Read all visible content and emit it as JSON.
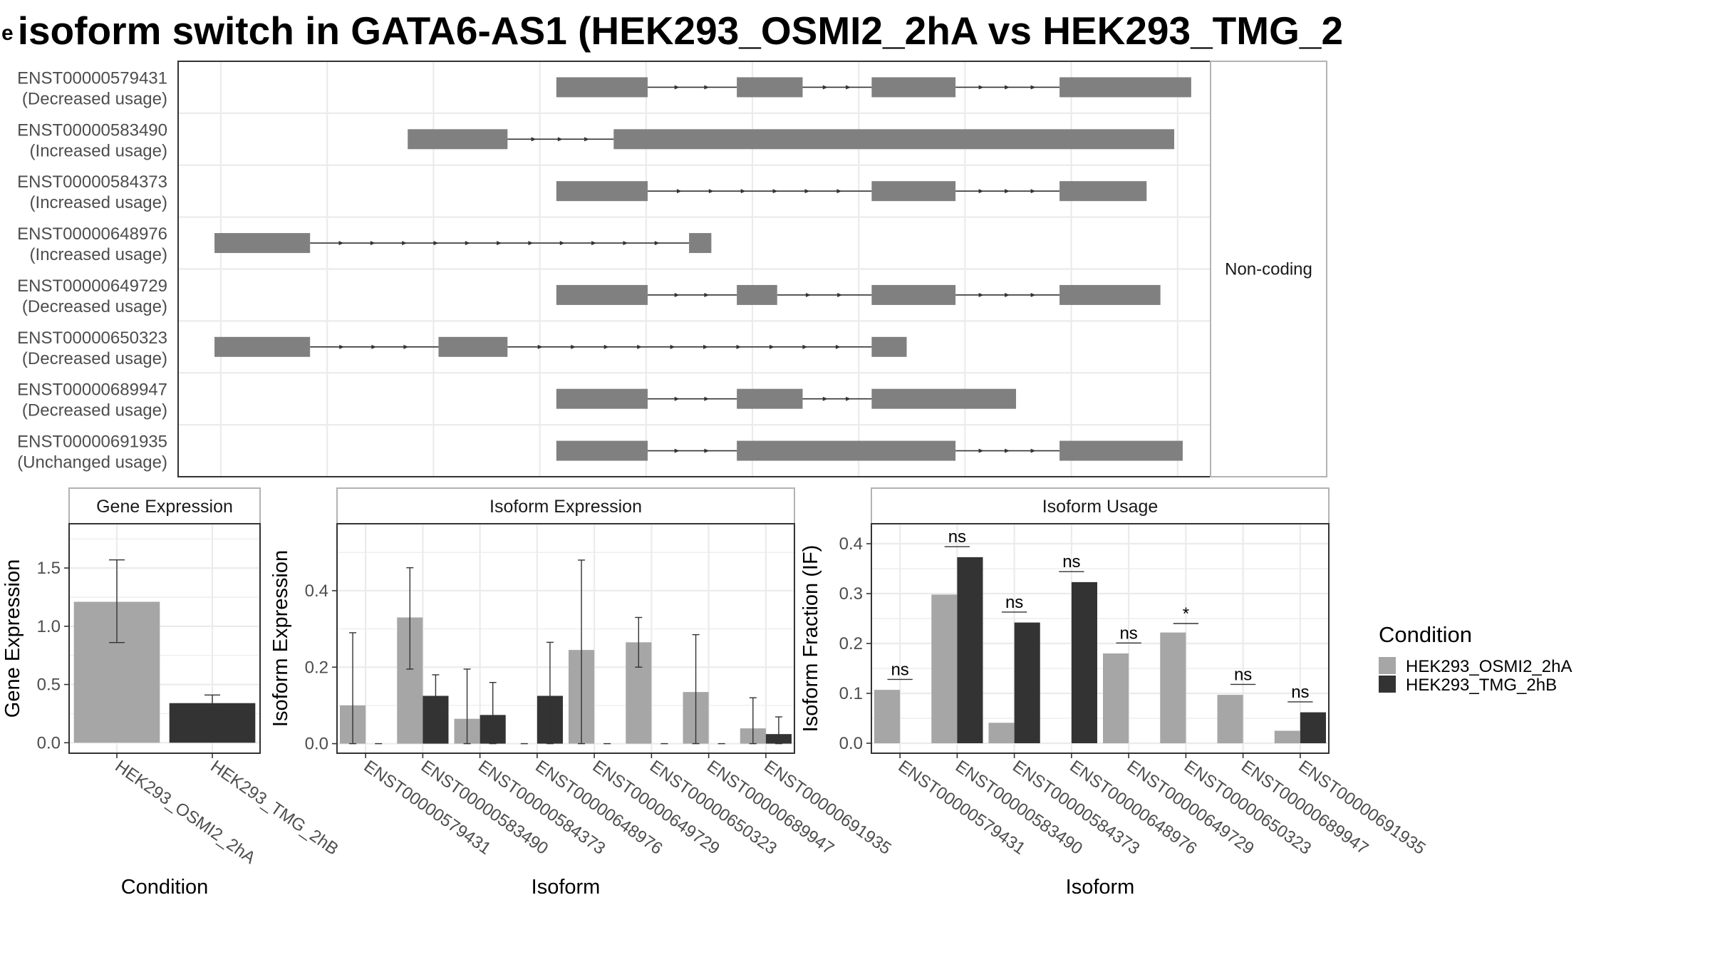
{
  "title": "isoform switch in GATA6-AS1 (HEK293_OSMI2_2hA vs HEK293_TMG_2",
  "title_leading_glyph": "e",
  "colors": {
    "condition_a": "#a6a6a6",
    "condition_b": "#333333",
    "exon": "#808080",
    "grid": "#ebebeb",
    "panel_border": "#333333",
    "strip_border": "#b3b3b3",
    "text": "#000000",
    "axis_text": "#4d4d4d"
  },
  "isoforms": [
    {
      "id": "ENST00000579431",
      "usage": "(Decreased usage)"
    },
    {
      "id": "ENST00000583490",
      "usage": "(Increased usage)"
    },
    {
      "id": "ENST00000584373",
      "usage": "(Increased usage)"
    },
    {
      "id": "ENST00000648976",
      "usage": "(Increased usage)"
    },
    {
      "id": "ENST00000649729",
      "usage": "(Decreased usage)"
    },
    {
      "id": "ENST00000650323",
      "usage": "(Decreased usage)"
    },
    {
      "id": "ENST00000689947",
      "usage": "(Decreased usage)"
    },
    {
      "id": "ENST00000691935",
      "usage": "(Unchanged usage)"
    }
  ],
  "transcript_strip_label": "Non-coding",
  "legend": {
    "title": "Condition",
    "items": [
      "HEK293_OSMI2_2hA",
      "HEK293_TMG_2hB"
    ]
  },
  "chart_data": [
    {
      "type": "gene-structure",
      "strip_label": "Non-coding",
      "coordinate_units": "relative genomic position, 0-100",
      "transcripts": [
        {
          "name": "ENST00000579431",
          "label": "(Decreased usage)",
          "exons": [
            [
              31.6,
              40.2
            ],
            [
              48.6,
              54.8
            ],
            [
              61.3,
              69.2
            ],
            [
              79.0,
              91.4
            ]
          ]
        },
        {
          "name": "ENST00000583490",
          "label": "(Increased usage)",
          "exons": [
            [
              17.6,
              27.0
            ],
            [
              37.0,
              89.8
            ]
          ]
        },
        {
          "name": "ENST00000584373",
          "label": "(Increased usage)",
          "exons": [
            [
              31.6,
              40.2
            ],
            [
              61.3,
              69.2
            ],
            [
              79.0,
              87.2
            ]
          ]
        },
        {
          "name": "ENST00000648976",
          "label": "(Increased usage)",
          "exons": [
            [
              -0.6,
              8.4
            ],
            [
              44.1,
              46.2
            ]
          ]
        },
        {
          "name": "ENST00000649729",
          "label": "(Decreased usage)",
          "exons": [
            [
              31.6,
              40.2
            ],
            [
              48.6,
              52.4
            ],
            [
              61.3,
              69.2
            ],
            [
              79.0,
              88.5
            ]
          ]
        },
        {
          "name": "ENST00000650323",
          "label": "(Decreased usage)",
          "exons": [
            [
              -0.6,
              8.4
            ],
            [
              20.5,
              27.0
            ],
            [
              61.3,
              64.6
            ]
          ]
        },
        {
          "name": "ENST00000689947",
          "label": "(Decreased usage)",
          "exons": [
            [
              31.6,
              40.2
            ],
            [
              48.6,
              54.8
            ],
            [
              61.3,
              74.9
            ]
          ]
        },
        {
          "name": "ENST00000691935",
          "label": "(Unchanged usage)",
          "exons": [
            [
              31.6,
              40.2
            ],
            [
              48.6,
              69.2
            ],
            [
              79.0,
              90.6
            ]
          ]
        }
      ]
    },
    {
      "type": "bar",
      "title": "Gene Expression",
      "xlabel": "Condition",
      "ylabel": "Gene Expression",
      "categories": [
        "HEK293_OSMI2_2hA",
        "HEK293_TMG_2hB"
      ],
      "values": [
        1.21,
        0.34
      ],
      "error_low": [
        0.86,
        0.28
      ],
      "error_high": [
        1.57,
        0.41
      ],
      "yticks": [
        0.0,
        0.5,
        1.0,
        1.5
      ],
      "ylim": [
        -0.09,
        1.88
      ],
      "grid": true
    },
    {
      "type": "bar",
      "title": "Isoform Expression",
      "xlabel": "Isoform",
      "ylabel": "Isoform Expression",
      "categories": [
        "ENST00000579431",
        "ENST00000583490",
        "ENST00000584373",
        "ENST00000648976",
        "ENST00000649729",
        "ENST00000650323",
        "ENST00000689947",
        "ENST00000691935"
      ],
      "series": [
        {
          "name": "HEK293_OSMI2_2hA",
          "values": [
            0.1,
            0.33,
            0.065,
            0.0,
            0.245,
            0.265,
            0.135,
            0.04
          ],
          "error_low": [
            0.0,
            0.195,
            0.0,
            null,
            0.0,
            0.2,
            0.0,
            0.0
          ],
          "error_high": [
            0.29,
            0.46,
            0.195,
            null,
            0.48,
            0.33,
            0.285,
            0.12
          ]
        },
        {
          "name": "HEK293_TMG_2hB",
          "values": [
            0.0,
            0.125,
            0.075,
            0.125,
            0.0,
            0.0,
            0.0,
            0.025
          ],
          "error_low": [
            null,
            0.075,
            0.0,
            0.0,
            null,
            null,
            null,
            0.0
          ],
          "error_high": [
            null,
            0.18,
            0.16,
            0.265,
            null,
            null,
            null,
            0.07
          ]
        }
      ],
      "yticks": [
        0.0,
        0.2,
        0.4
      ],
      "ylim": [
        -0.025,
        0.575
      ],
      "grid": true
    },
    {
      "type": "bar",
      "title": "Isoform Usage",
      "xlabel": "Isoform",
      "ylabel": "Isoform Fraction (IF)",
      "categories": [
        "ENST00000579431",
        "ENST00000583490",
        "ENST00000584373",
        "ENST00000648976",
        "ENST00000649729",
        "ENST00000650323",
        "ENST00000689947",
        "ENST00000691935"
      ],
      "series": [
        {
          "name": "HEK293_OSMI2_2hA",
          "values": [
            0.107,
            0.298,
            0.041,
            0.0,
            0.18,
            0.222,
            0.097,
            0.025
          ]
        },
        {
          "name": "HEK293_TMG_2hB",
          "values": [
            0.0,
            0.373,
            0.242,
            0.323,
            0.0,
            0.0,
            0.0,
            0.062
          ]
        }
      ],
      "significance": [
        "ns",
        "ns",
        "ns",
        "ns",
        "ns",
        "*",
        "ns",
        "ns"
      ],
      "significance_y": [
        0.128,
        0.394,
        0.263,
        0.344,
        0.201,
        0.24,
        0.118,
        0.083
      ],
      "yticks": [
        0.0,
        0.1,
        0.2,
        0.3,
        0.4
      ],
      "ylim": [
        -0.02,
        0.44
      ],
      "grid": true
    }
  ]
}
